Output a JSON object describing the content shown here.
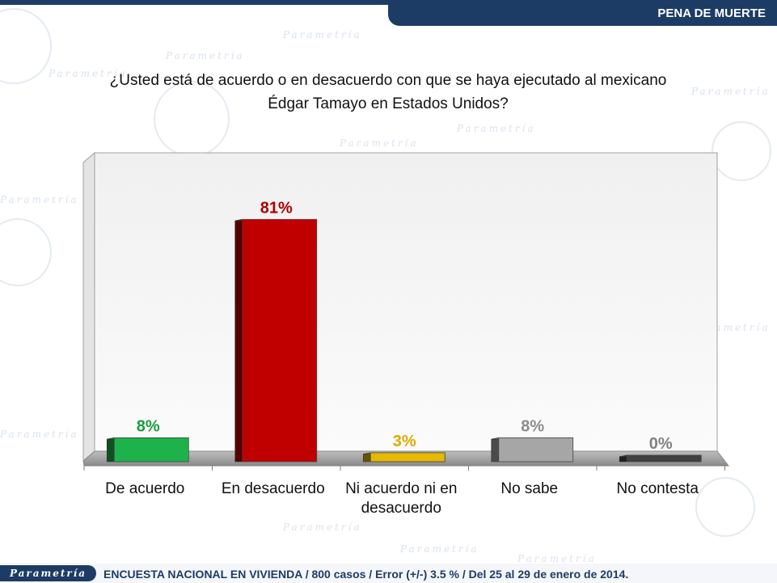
{
  "header": {
    "section_title": "PENA DE MUERTE"
  },
  "question": {
    "line1": "¿Usted está de acuerdo o en desacuerdo con que  se haya ejecutado al mexicano",
    "line2": "Édgar Tamayo en Estados Unidos?"
  },
  "footer": {
    "logo_text": "Parametría",
    "survey_note": "ENCUESTA NACIONAL EN VIVIENDA / 800 casos / Error (+/-) 3.5 % / Del 25 al 29 de enero de 2014."
  },
  "watermark": {
    "text": "Parametría"
  },
  "chart_data": {
    "type": "bar",
    "title": "",
    "xlabel": "",
    "ylabel": "",
    "ylim": [
      0,
      100
    ],
    "grid": false,
    "legend": "none",
    "categories": [
      [
        "De acuerdo"
      ],
      [
        "En desacuerdo"
      ],
      [
        "Ni acuerdo ni en",
        "desacuerdo"
      ],
      [
        "No sabe"
      ],
      [
        "No contesta"
      ]
    ],
    "values": [
      8,
      81,
      3,
      8,
      0
    ],
    "value_labels": [
      "8%",
      "81%",
      "3%",
      "8%",
      "0%"
    ],
    "colors": [
      "#1db34a",
      "#c00000",
      "#e6b800",
      "#a6a6a6",
      "#404040"
    ],
    "label_colors": [
      "#1a9e3f",
      "#b00000",
      "#e0aa00",
      "#8c8c8c",
      "#808080"
    ]
  }
}
